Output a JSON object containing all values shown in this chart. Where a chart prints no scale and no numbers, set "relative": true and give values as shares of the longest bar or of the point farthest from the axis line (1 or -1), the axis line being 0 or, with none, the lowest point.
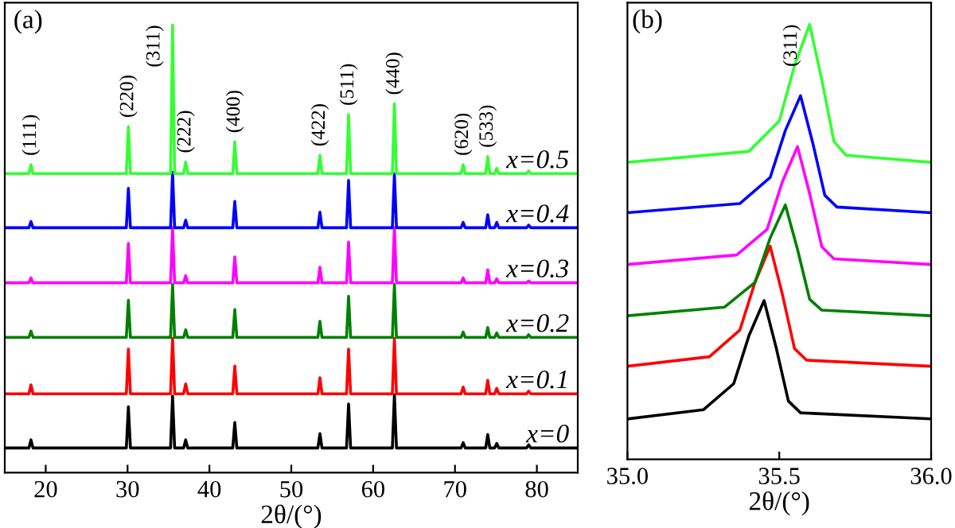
{
  "chart_data": [
    {
      "type": "line",
      "title": "(a)",
      "xlabel": "2θ/(°)",
      "relative": true,
      "tick_labels": "x",
      "grid": false,
      "xlim": [
        15,
        85
      ],
      "xticks": [
        20,
        30,
        40,
        50,
        60,
        70,
        80
      ],
      "x": [
        15,
        17.95,
        18.2,
        18.45,
        29.85,
        30.1,
        30.35,
        35.25,
        35.5,
        35.75,
        36.85,
        37.1,
        37.35,
        42.85,
        43.1,
        43.35,
        53.25,
        53.5,
        53.75,
        56.75,
        57.0,
        57.25,
        62.35,
        62.6,
        62.85,
        70.75,
        71.0,
        71.25,
        73.75,
        74.0,
        74.25,
        74.85,
        75.1,
        75.35,
        78.75,
        79.0,
        79.25,
        85
      ],
      "series": [
        {
          "name": "x=0",
          "color": "#000000",
          "values": [
            0.055,
            0.055,
            0.073,
            0.055,
            0.055,
            0.147,
            0.055,
            0.055,
            0.171,
            0.055,
            0.055,
            0.073,
            0.055,
            0.055,
            0.112,
            0.055,
            0.055,
            0.087,
            0.055,
            0.055,
            0.153,
            0.055,
            0.055,
            0.174,
            0.055,
            0.055,
            0.067,
            0.055,
            0.055,
            0.085,
            0.055,
            0.055,
            0.065,
            0.055,
            0.055,
            0.062,
            0.055,
            0.055
          ]
        },
        {
          "name": "x=0.1",
          "color": "#ff0000",
          "values": [
            0.176,
            0.176,
            0.196,
            0.176,
            0.176,
            0.276,
            0.176,
            0.176,
            0.3,
            0.176,
            0.176,
            0.198,
            0.176,
            0.176,
            0.238,
            0.176,
            0.176,
            0.212,
            0.176,
            0.176,
            0.276,
            0.176,
            0.176,
            0.3,
            0.176,
            0.176,
            0.191,
            0.176,
            0.176,
            0.206,
            0.176,
            0.176,
            0.188,
            0.176,
            0.176,
            0.182,
            0.176,
            0.176
          ]
        },
        {
          "name": "x=0.2",
          "color": "#008000",
          "values": [
            0.302,
            0.302,
            0.316,
            0.302,
            0.302,
            0.385,
            0.302,
            0.302,
            0.42,
            0.302,
            0.302,
            0.319,
            0.302,
            0.302,
            0.364,
            0.302,
            0.302,
            0.338,
            0.302,
            0.302,
            0.394,
            0.302,
            0.302,
            0.42,
            0.302,
            0.302,
            0.314,
            0.302,
            0.302,
            0.324,
            0.302,
            0.302,
            0.312,
            0.302,
            0.302,
            0.308,
            0.302,
            0.302
          ]
        },
        {
          "name": "x=0.3",
          "color": "#ff00ff",
          "values": [
            0.424,
            0.424,
            0.435,
            0.424,
            0.424,
            0.512,
            0.424,
            0.424,
            0.547,
            0.424,
            0.424,
            0.44,
            0.424,
            0.424,
            0.482,
            0.424,
            0.424,
            0.459,
            0.424,
            0.424,
            0.515,
            0.424,
            0.424,
            0.547,
            0.424,
            0.424,
            0.435,
            0.424,
            0.424,
            0.453,
            0.424,
            0.424,
            0.433,
            0.424,
            0.424,
            0.428,
            0.424,
            0.424
          ]
        },
        {
          "name": "x=0.4",
          "color": "#0000ff",
          "values": [
            0.547,
            0.547,
            0.561,
            0.547,
            0.547,
            0.635,
            0.547,
            0.547,
            0.671,
            0.547,
            0.547,
            0.564,
            0.547,
            0.547,
            0.606,
            0.547,
            0.547,
            0.582,
            0.547,
            0.547,
            0.653,
            0.547,
            0.547,
            0.668,
            0.547,
            0.547,
            0.559,
            0.547,
            0.547,
            0.576,
            0.547,
            0.547,
            0.559,
            0.547,
            0.547,
            0.553,
            0.547,
            0.547
          ]
        },
        {
          "name": "x=0.5",
          "color": "#33ff33",
          "values": [
            0.668,
            0.668,
            0.688,
            0.668,
            0.668,
            0.773,
            0.668,
            0.668,
            1,
            0.668,
            0.668,
            0.694,
            0.668,
            0.668,
            0.739,
            0.668,
            0.668,
            0.709,
            0.668,
            0.668,
            0.8,
            0.668,
            0.668,
            0.824,
            0.668,
            0.668,
            0.688,
            0.668,
            0.668,
            0.706,
            0.668,
            0.668,
            0.68,
            0.668,
            0.668,
            0.674,
            0.668,
            0.668
          ]
        }
      ],
      "annotations": [
        {
          "text": "(111)",
          "x": 18.2,
          "y": 0.688
        },
        {
          "text": "(220)",
          "x": 30.1,
          "y": 0.773
        },
        {
          "text": "(311)",
          "x": 35.5,
          "y": 1
        },
        {
          "text": "(222)",
          "x": 37.1,
          "y": 0.694
        },
        {
          "text": "(400)",
          "x": 43.1,
          "y": 0.739
        },
        {
          "text": "(422)",
          "x": 53.5,
          "y": 0.709
        },
        {
          "text": "(511)",
          "x": 57.0,
          "y": 0.8
        },
        {
          "text": "(440)",
          "x": 62.6,
          "y": 0.824
        },
        {
          "text": "(620)",
          "x": 71.0,
          "y": 0.688
        },
        {
          "text": "(533)",
          "x": 74.0,
          "y": 0.706
        }
      ]
    },
    {
      "type": "line",
      "title": "(b)",
      "xlabel": "2θ/(°)",
      "relative": true,
      "tick_labels": "x",
      "grid": false,
      "xlim": [
        35.0,
        36.0
      ],
      "xticks": [
        {
          "value": 35.0,
          "label": "35.0"
        },
        {
          "value": 35.5,
          "label": "35.5"
        },
        {
          "value": 36.0,
          "label": "36.0"
        }
      ],
      "series": [
        {
          "color": "#000000",
          "x": [
            35,
            35.25,
            35.35,
            35.4,
            35.45,
            35.49,
            35.53,
            35.57,
            36
          ],
          "values": [
            0.093,
            0.114,
            0.174,
            0.284,
            0.365,
            0.256,
            0.134,
            0.107,
            0.093
          ]
        },
        {
          "color": "#ff0000",
          "x": [
            35,
            35.27,
            35.37,
            35.42,
            35.47,
            35.51,
            35.55,
            35.59,
            36
          ],
          "values": [
            0.214,
            0.236,
            0.297,
            0.407,
            0.49,
            0.38,
            0.255,
            0.228,
            0.214
          ]
        },
        {
          "color": "#008000",
          "x": [
            35,
            35.32,
            35.42,
            35.47,
            35.52,
            35.56,
            35.6,
            35.64,
            36
          ],
          "values": [
            0.33,
            0.35,
            0.407,
            0.509,
            0.585,
            0.483,
            0.368,
            0.343,
            0.33
          ]
        },
        {
          "color": "#ff00ff",
          "x": [
            35,
            35.36,
            35.46,
            35.51,
            35.56,
            35.6,
            35.64,
            35.68,
            36
          ],
          "values": [
            0.448,
            0.47,
            0.529,
            0.638,
            0.719,
            0.611,
            0.489,
            0.461,
            0.448
          ]
        },
        {
          "color": "#0000ff",
          "x": [
            35,
            35.37,
            35.47,
            35.52,
            35.57,
            35.61,
            35.65,
            35.69,
            36
          ],
          "values": [
            0.567,
            0.588,
            0.648,
            0.756,
            0.836,
            0.728,
            0.607,
            0.58,
            0.567
          ]
        },
        {
          "color": "#33ff33",
          "x": [
            35,
            35.4,
            35.5,
            35.55,
            35.6,
            35.64,
            35.68,
            35.72,
            36
          ],
          "values": [
            0.683,
            0.708,
            0.778,
            0.905,
            1,
            0.873,
            0.731,
            0.699,
            0.683
          ]
        }
      ],
      "annotations": [
        {
          "text": "(311)",
          "x": 35.6,
          "y": 1
        }
      ]
    }
  ]
}
